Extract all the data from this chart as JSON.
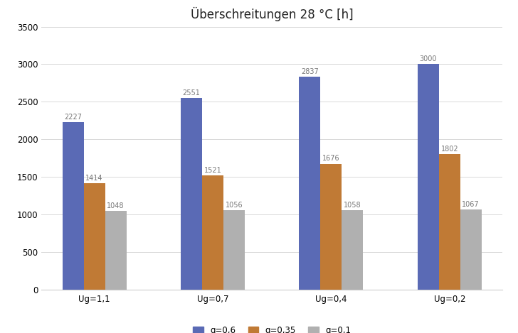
{
  "title": "Überschreitungen 28 °C [h]",
  "categories": [
    "Ug=1,1",
    "Ug=0,7",
    "Ug=0,4",
    "Ug=0,2"
  ],
  "series": [
    {
      "label": "g=0,6",
      "color": "#5a6ab5",
      "values": [
        2227,
        2551,
        2837,
        3000
      ]
    },
    {
      "label": "g=0,35",
      "color": "#c07a35",
      "values": [
        1414,
        1521,
        1676,
        1802
      ]
    },
    {
      "label": "g=0,1",
      "color": "#b0b0b0",
      "values": [
        1048,
        1056,
        1058,
        1067
      ]
    }
  ],
  "ylim": [
    0,
    3500
  ],
  "yticks": [
    0,
    500,
    1000,
    1500,
    2000,
    2500,
    3000,
    3500
  ],
  "bar_width": 0.18,
  "title_fontsize": 12,
  "tick_fontsize": 8.5,
  "legend_fontsize": 8.5,
  "background_color": "#ffffff",
  "grid_color": "#d8d8d8",
  "annotation_fontsize": 7,
  "annotation_color": "#777777"
}
